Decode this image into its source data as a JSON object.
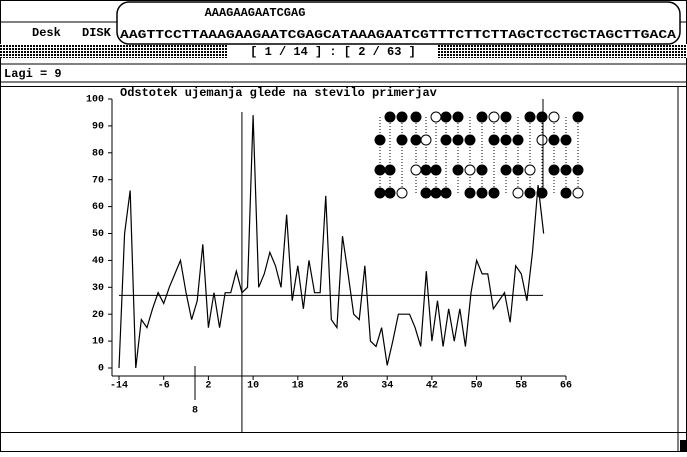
{
  "menu": [
    "Desk",
    "DISK"
  ],
  "popup": {
    "line1": "AAAGAAGAATCGAG",
    "line2": "AAGTTCCTTAAAGAAGAATCGAGCATAAAGAATCGTTTCTTCTTAGCTCCTGCTAGCTTGACA"
  },
  "status": "[ 1 / 14 ] : [ 2 / 63 ]",
  "info": "Lagi = 9",
  "chart_data": {
    "type": "line",
    "title": "Odstotek ujemanja glede na stevilo primerjav",
    "x": [
      -14,
      -13,
      -12,
      -11,
      -10,
      -9,
      -8,
      -7,
      -6,
      -5,
      -4,
      -3,
      -2,
      -1,
      0,
      1,
      2,
      3,
      4,
      5,
      6,
      7,
      8,
      9,
      10,
      11,
      12,
      13,
      14,
      15,
      16,
      17,
      18,
      19,
      20,
      21,
      22,
      23,
      24,
      25,
      26,
      27,
      28,
      29,
      30,
      31,
      32,
      33,
      34,
      35,
      36,
      37,
      38,
      39,
      40,
      41,
      42,
      43,
      44,
      45,
      46,
      47,
      48,
      49,
      50,
      51,
      52,
      53,
      54,
      55,
      56,
      57,
      58,
      59,
      60,
      61,
      62
    ],
    "series": [
      {
        "color": "#000000",
        "values": [
          0,
          50,
          66,
          0,
          18,
          15,
          22,
          28,
          24,
          30,
          35,
          40,
          28,
          18,
          25,
          46,
          15,
          28,
          15,
          28,
          28,
          36,
          28,
          30,
          94,
          30,
          35,
          43,
          38,
          30,
          57,
          25,
          38,
          22,
          40,
          28,
          28,
          64,
          18,
          15,
          49,
          35,
          20,
          18,
          38,
          10,
          8,
          15,
          1,
          10,
          20,
          20,
          20,
          15,
          8,
          36,
          10,
          25,
          8,
          22,
          10,
          22,
          8,
          28,
          40,
          35,
          35,
          22,
          25,
          28,
          17,
          38,
          35,
          25,
          43,
          68,
          50
        ]
      }
    ],
    "xlim": [
      -14,
      66
    ],
    "ylim": [
      0,
      100
    ],
    "xticks": [
      -14,
      -6,
      2,
      10,
      18,
      26,
      34,
      42,
      50,
      58,
      66
    ],
    "yticks": [
      0,
      10,
      20,
      30,
      40,
      50,
      60,
      70,
      80,
      90,
      100
    ],
    "crosshair": {
      "x": 8,
      "y": 27
    }
  }
}
